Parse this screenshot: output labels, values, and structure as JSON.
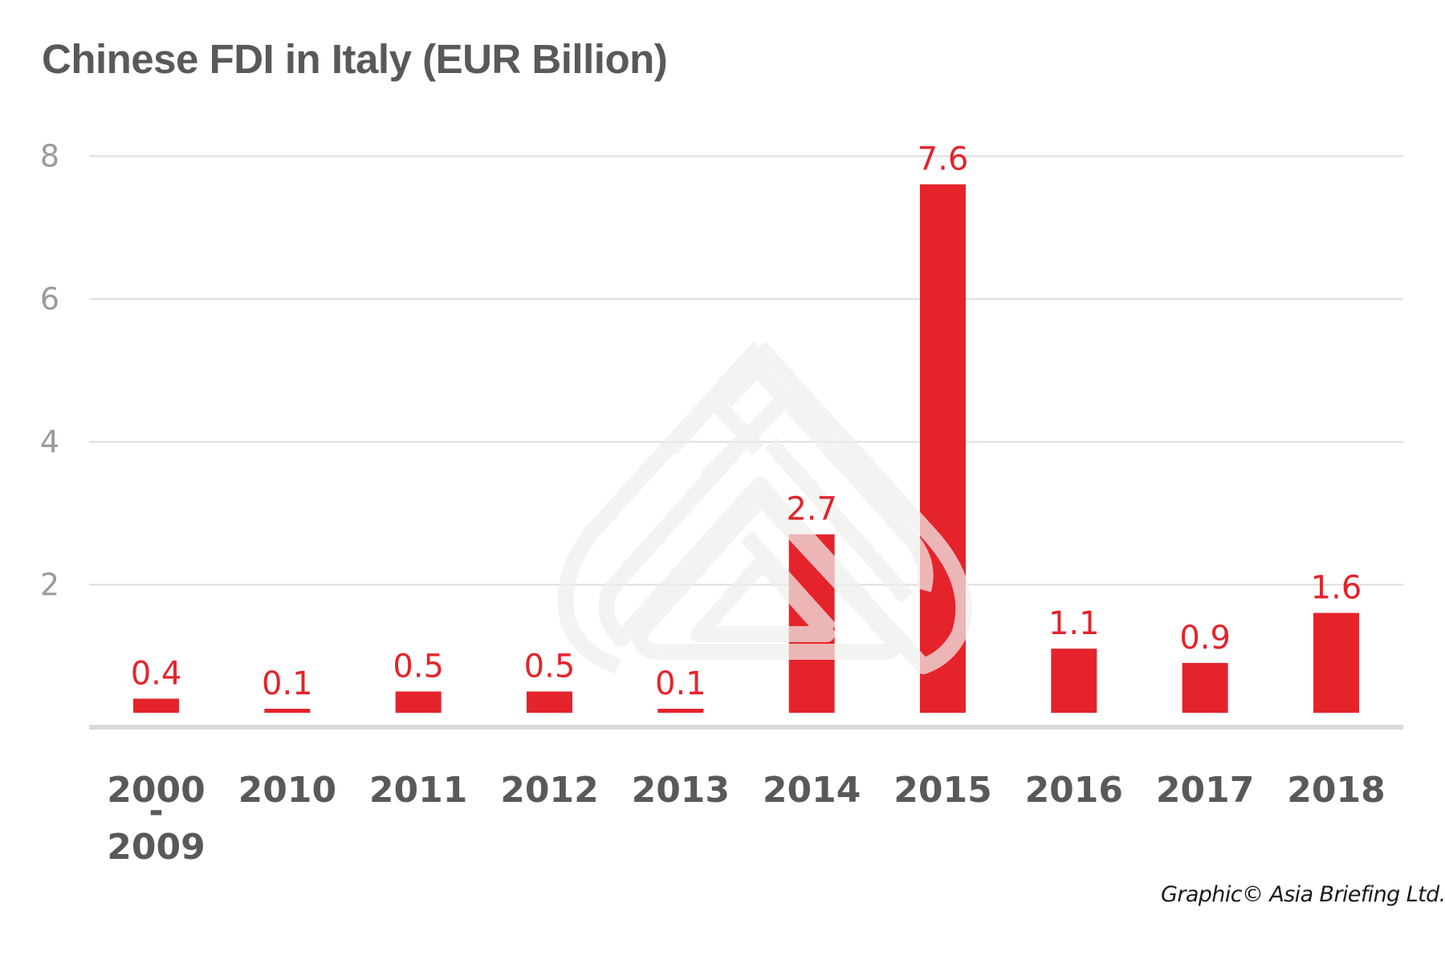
{
  "chart_data": {
    "type": "bar",
    "title": "Chinese FDI in Italy (EUR Billion)",
    "xlabel": "",
    "ylabel": "",
    "categories": [
      "2000\n-\n2009",
      "2010",
      "2011",
      "2012",
      "2013",
      "2014",
      "2015",
      "2016",
      "2017",
      "2018"
    ],
    "values": [
      0.4,
      0.1,
      0.5,
      0.5,
      0.1,
      2.7,
      7.6,
      1.1,
      0.9,
      1.6
    ],
    "data_labels": [
      "0.4",
      "0.1",
      "0.5",
      "0.5",
      "0.1",
      "2.7",
      "7.6",
      "1.1",
      "0.9",
      "1.6"
    ],
    "yticks": [
      2,
      4,
      6,
      8
    ],
    "ytick_labels": [
      "2",
      "4",
      "6",
      "8"
    ],
    "ylim": [
      0,
      8
    ],
    "grid": true,
    "legend": "none",
    "bar_color": "#e5232b",
    "annotation": "Graphic© Asia Briefing Ltd."
  },
  "title": "Chinese FDI in Italy (EUR Billion)",
  "credit": "Graphic© Asia Briefing Ltd.",
  "watermark": "asia-briefing-logo"
}
